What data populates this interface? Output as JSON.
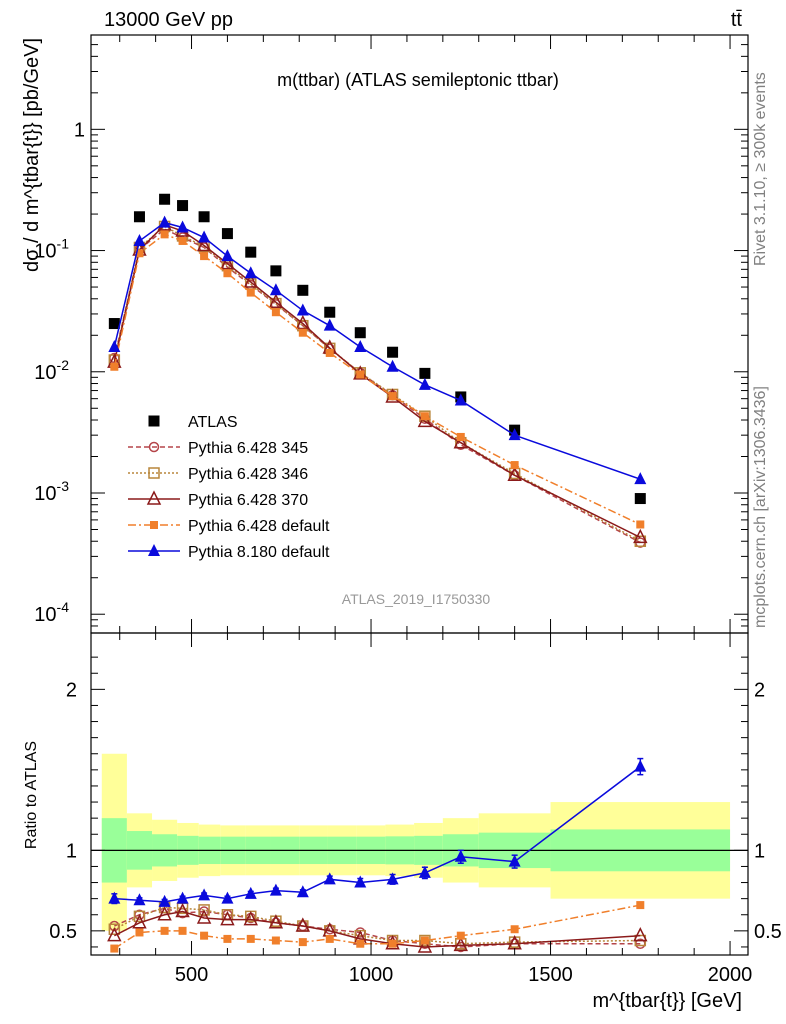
{
  "header": {
    "beam": "13000 GeV pp",
    "process": "tt̄"
  },
  "side_labels": {
    "rivet": "Rivet 3.1.10, ≥ 300k events",
    "mcplots": "mcplots.cern.ch [arXiv:1306.3436]"
  },
  "chart_data": [
    {
      "type": "scatter",
      "panel": "main",
      "title": "m(ttbar) (ATLAS semileptonic ttbar)",
      "analysis_tag": "ATLAS_2019_I1750330",
      "xlabel": "m^{tbar{t}} [GeV]",
      "ylabel": "dσ / d m^{tbar{t}} [pb/GeV]",
      "yscale": "log",
      "xlim": [
        220,
        2050
      ],
      "ylim": [
        7e-05,
        6
      ],
      "y_tick_labels": [
        "1",
        "10^-1",
        "10^-2",
        "10^-3",
        "10^-4"
      ],
      "legend_position": "middle-left",
      "x": [
        285,
        355,
        425,
        475,
        535,
        600,
        665,
        735,
        810,
        885,
        970,
        1060,
        1150,
        1250,
        1400,
        1750
      ],
      "series": [
        {
          "name": "ATLAS",
          "color": "#000000",
          "style": "marker",
          "marker": "square-filled",
          "values": [
            0.025,
            0.19,
            0.265,
            0.235,
            0.19,
            0.138,
            0.097,
            0.068,
            0.047,
            0.031,
            0.021,
            0.0145,
            0.0097,
            0.0062,
            0.0033,
            0.0009
          ]
        },
        {
          "name": "Pythia 6.428 345",
          "color": "#b5454a",
          "dash": "5,3",
          "marker": "circle-open",
          "values": [
            0.013,
            0.102,
            0.15,
            0.128,
            0.106,
            0.073,
            0.052,
            0.036,
            0.024,
            0.0155,
            0.0098,
            0.0064,
            0.0041,
            0.0025,
            0.0014,
            0.00039
          ]
        },
        {
          "name": "Pythia 6.428 346",
          "color": "#b8863b",
          "dash": "2,2",
          "marker": "square-open",
          "values": [
            0.0125,
            0.106,
            0.158,
            0.132,
            0.108,
            0.075,
            0.053,
            0.0365,
            0.024,
            0.0156,
            0.0098,
            0.0065,
            0.0043,
            0.0026,
            0.00145,
            0.0004
          ]
        },
        {
          "name": "Pythia 6.428 370",
          "color": "#8b1a1a",
          "dash": "",
          "marker": "triangle-open",
          "values": [
            0.012,
            0.101,
            0.163,
            0.145,
            0.11,
            0.078,
            0.055,
            0.0375,
            0.025,
            0.0157,
            0.0096,
            0.0062,
            0.0039,
            0.0026,
            0.0014,
            0.00043
          ]
        },
        {
          "name": "Pythia 6.428 default",
          "color": "#f07f2b",
          "dash": "8,3,2,3",
          "marker": "square-filled-small",
          "values": [
            0.011,
            0.095,
            0.136,
            0.12,
            0.09,
            0.065,
            0.045,
            0.031,
            0.021,
            0.0143,
            0.0095,
            0.0063,
            0.0043,
            0.0029,
            0.0017,
            0.00055
          ]
        },
        {
          "name": "Pythia 8.180 default",
          "color": "#0a0adc",
          "dash": "",
          "marker": "triangle-filled",
          "values": [
            0.016,
            0.12,
            0.17,
            0.155,
            0.128,
            0.09,
            0.065,
            0.047,
            0.032,
            0.024,
            0.016,
            0.011,
            0.0078,
            0.0058,
            0.003,
            0.0013
          ]
        }
      ]
    },
    {
      "type": "scatter",
      "panel": "ratio",
      "ylabel": "Ratio to ATLAS",
      "xlabel": "m^{tbar{t}} [GeV]",
      "xlim": [
        220,
        2050
      ],
      "ylim": [
        0.35,
        2.35
      ],
      "x_ticks": [
        500,
        1000,
        1500,
        2000
      ],
      "x_tick_labels": [
        "500",
        "1000",
        "1500",
        "2000"
      ],
      "y_tick_labels": [
        "0.5",
        "1",
        "2"
      ],
      "reference_line": 1,
      "bands": {
        "bin_edges": [
          250,
          320,
          390,
          460,
          520,
          580,
          650,
          720,
          800,
          880,
          960,
          1040,
          1120,
          1200,
          1300,
          1500,
          2000
        ],
        "inner_low": [
          0.8,
          0.88,
          0.9,
          0.91,
          0.915,
          0.915,
          0.915,
          0.915,
          0.915,
          0.915,
          0.915,
          0.913,
          0.91,
          0.9,
          0.89,
          0.87
        ],
        "inner_high": [
          1.2,
          1.12,
          1.1,
          1.09,
          1.085,
          1.085,
          1.085,
          1.085,
          1.085,
          1.085,
          1.085,
          1.087,
          1.09,
          1.1,
          1.11,
          1.13
        ],
        "outer_low": [
          0.5,
          0.77,
          0.81,
          0.83,
          0.84,
          0.845,
          0.845,
          0.845,
          0.845,
          0.845,
          0.845,
          0.84,
          0.83,
          0.8,
          0.77,
          0.7
        ],
        "outer_high": [
          1.6,
          1.23,
          1.19,
          1.17,
          1.16,
          1.155,
          1.155,
          1.155,
          1.155,
          1.155,
          1.155,
          1.16,
          1.17,
          1.2,
          1.23,
          1.3
        ],
        "inner_color": "#99ff99",
        "outer_color": "#ffff99"
      },
      "x": [
        285,
        355,
        425,
        475,
        535,
        600,
        665,
        735,
        810,
        885,
        970,
        1060,
        1150,
        1250,
        1400,
        1750
      ],
      "series": [
        {
          "name": "Pythia 6.428 345",
          "color": "#b5454a",
          "dash": "5,3",
          "marker": "circle-open",
          "values": [
            0.53,
            0.6,
            0.64,
            0.61,
            0.62,
            0.6,
            0.58,
            0.55,
            0.53,
            0.51,
            0.49,
            0.44,
            0.42,
            0.4,
            0.42,
            0.42
          ]
        },
        {
          "name": "Pythia 6.428 346",
          "color": "#b8863b",
          "dash": "2,2",
          "marker": "square-open",
          "values": [
            0.51,
            0.59,
            0.645,
            0.64,
            0.63,
            0.6,
            0.59,
            0.56,
            0.53,
            0.5,
            0.47,
            0.44,
            0.44,
            0.42,
            0.43,
            0.44
          ]
        },
        {
          "name": "Pythia 6.428 370",
          "color": "#8b1a1a",
          "dash": "",
          "marker": "triangle-open",
          "values": [
            0.47,
            0.55,
            0.6,
            0.62,
            0.58,
            0.57,
            0.57,
            0.55,
            0.53,
            0.5,
            0.45,
            0.42,
            0.4,
            0.41,
            0.42,
            0.47
          ]
        },
        {
          "name": "Pythia 6.428 default",
          "color": "#f07f2b",
          "dash": "8,3,2,3",
          "marker": "square-filled-small",
          "values": [
            0.39,
            0.49,
            0.5,
            0.5,
            0.47,
            0.45,
            0.45,
            0.44,
            0.43,
            0.45,
            0.42,
            0.42,
            0.44,
            0.47,
            0.51,
            0.66
          ]
        },
        {
          "name": "Pythia 8.180 default",
          "color": "#0a0adc",
          "dash": "",
          "marker": "triangle-filled",
          "errors": [
            0.03,
            0.015,
            0.015,
            0.015,
            0.015,
            0.015,
            0.015,
            0.015,
            0.015,
            0.02,
            0.025,
            0.03,
            0.035,
            0.04,
            0.04,
            0.05
          ],
          "values": [
            0.7,
            0.69,
            0.68,
            0.7,
            0.72,
            0.7,
            0.73,
            0.75,
            0.74,
            0.82,
            0.8,
            0.82,
            0.86,
            0.96,
            0.93,
            1.52
          ]
        }
      ]
    }
  ]
}
